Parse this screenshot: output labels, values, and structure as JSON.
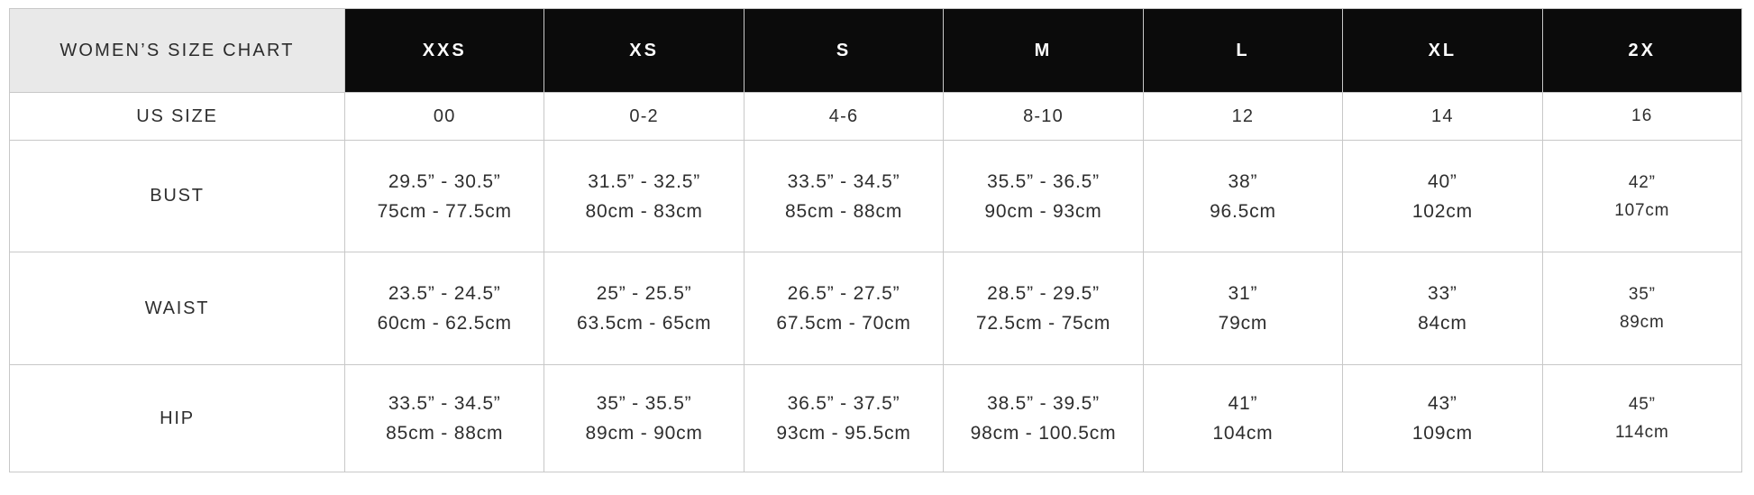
{
  "colors": {
    "header_bg": "#0b0b0b",
    "header_text": "#ffffff",
    "title_bg": "#e9e9e9",
    "grid_line": "#c8c8c8",
    "body_text": "#2e2e2e",
    "page_bg": "#ffffff"
  },
  "chart_data": {
    "type": "table",
    "title": "WOMEN’S SIZE CHART",
    "columns": [
      "WOMEN’S SIZE CHART",
      "XXS",
      "XS",
      "S",
      "M",
      "L",
      "XL",
      "2X"
    ],
    "rows": [
      {
        "label": "US SIZE",
        "cells": [
          [
            "00"
          ],
          [
            "0-2"
          ],
          [
            "4-6"
          ],
          [
            "8-10"
          ],
          [
            "12"
          ],
          [
            "14"
          ],
          [
            "16"
          ]
        ]
      },
      {
        "label": "BUST",
        "cells": [
          [
            "29.5” - 30.5”",
            "75cm - 77.5cm"
          ],
          [
            "31.5” - 32.5”",
            "80cm - 83cm"
          ],
          [
            "33.5” - 34.5”",
            "85cm - 88cm"
          ],
          [
            "35.5” - 36.5”",
            "90cm - 93cm"
          ],
          [
            "38”",
            "96.5cm"
          ],
          [
            "40”",
            "102cm"
          ],
          [
            "42”",
            "107cm"
          ]
        ]
      },
      {
        "label": "WAIST",
        "cells": [
          [
            "23.5” - 24.5”",
            "60cm - 62.5cm"
          ],
          [
            "25” - 25.5”",
            "63.5cm - 65cm"
          ],
          [
            "26.5” - 27.5”",
            "67.5cm - 70cm"
          ],
          [
            "28.5” - 29.5”",
            "72.5cm - 75cm"
          ],
          [
            "31”",
            "79cm"
          ],
          [
            "33”",
            "84cm"
          ],
          [
            "35”",
            "89cm"
          ]
        ]
      },
      {
        "label": "HIP",
        "cells": [
          [
            "33.5” - 34.5”",
            "85cm - 88cm"
          ],
          [
            "35” - 35.5”",
            "89cm - 90cm"
          ],
          [
            "36.5” - 37.5”",
            "93cm - 95.5cm"
          ],
          [
            "38.5” - 39.5”",
            "98cm - 100.5cm"
          ],
          [
            "41”",
            "104cm"
          ],
          [
            "43”",
            "109cm"
          ],
          [
            "45”",
            "114cm"
          ]
        ]
      }
    ]
  }
}
